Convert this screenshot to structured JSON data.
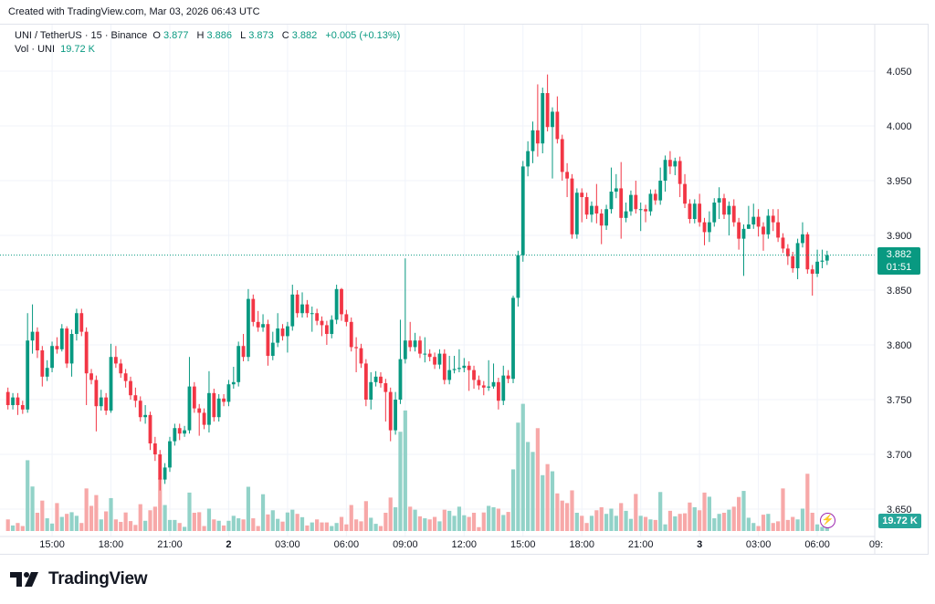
{
  "created_note": "Created with TradingView.com, Mar 03, 2026 06:43 UTC",
  "legend": {
    "symbol": "UNI / TetherUS · 15 · Binance",
    "o_label": "O",
    "o": "3.877",
    "h_label": "H",
    "h": "3.886",
    "l_label": "L",
    "l": "3.873",
    "c_label": "C",
    "c": "3.882",
    "change": "+0.005 (+0.13%)",
    "vol_label": "Vol · UNI",
    "vol_value": "19.72 K"
  },
  "price_tag": {
    "price": "3.882",
    "countdown": "01:51"
  },
  "volume_tag": "19.72 K",
  "logo_text": "TradingView",
  "icons": {
    "alert": "lightning-bolt-icon",
    "logo": "tradingview-logo-icon"
  },
  "colors": {
    "up": "#089981",
    "down": "#f23645",
    "vol_up": "#92d2c8",
    "vol_down": "#f7a8a8",
    "grid": "#f0f3fa"
  },
  "chart_data": {
    "type": "candlestick",
    "title": "UNI / TetherUS · 15 · Binance",
    "interval": "15",
    "ylim": [
      3.625,
      4.0617
    ],
    "y_ticks": [
      "3.650",
      "3.700",
      "3.750",
      "3.800",
      "3.850",
      "3.900",
      "3.950",
      "4.000",
      "4.050"
    ],
    "x_ticks": [
      "15:00",
      "18:00",
      "21:00",
      "2",
      "03:00",
      "06:00",
      "09:00",
      "12:00",
      "15:00",
      "18:00",
      "21:00",
      "3",
      "03:00",
      "06:00",
      "09:"
    ],
    "grid": true,
    "last_price": 3.882,
    "open": [
      3.757,
      3.745,
      3.752,
      3.745,
      3.741,
      3.804,
      3.812,
      3.795,
      3.771,
      3.779,
      3.799,
      3.796,
      3.815,
      3.783,
      3.81,
      3.829,
      3.812,
      3.774,
      3.768,
      3.744,
      3.752,
      3.74,
      3.789,
      3.783,
      3.774,
      3.767,
      3.754,
      3.749,
      3.734,
      3.736,
      3.71,
      3.7,
      3.677,
      3.688,
      3.712,
      3.724,
      3.719,
      3.722,
      3.762,
      3.742,
      3.738,
      3.727,
      3.756,
      3.734,
      3.751,
      3.748,
      3.764,
      3.766,
      3.799,
      3.789,
      3.842,
      3.821,
      3.816,
      3.819,
      3.79,
      3.802,
      3.815,
      3.808,
      3.817,
      3.846,
      3.829,
      3.837,
      3.829,
      3.829,
      3.822,
      3.818,
      3.81,
      3.823,
      3.851,
      3.828,
      3.821,
      3.798,
      3.797,
      3.783,
      3.75,
      3.766,
      3.771,
      3.765,
      3.757,
      3.722,
      3.75,
      3.787,
      3.804,
      3.798,
      3.804,
      3.792,
      3.792,
      3.789,
      3.782,
      3.792,
      3.768,
      3.777,
      3.778,
      3.779,
      3.781,
      3.777,
      3.768,
      3.763,
      3.761,
      3.762,
      3.766,
      3.749,
      3.772,
      3.769,
      3.843,
      3.882,
      3.963,
      3.977,
      3.996,
      3.984,
      4.03,
      3.999,
      4.013,
      3.988,
      3.958,
      3.952,
      3.901,
      3.939,
      3.935,
      3.919,
      3.927,
      3.92,
      3.909,
      3.924,
      3.94,
      3.943,
      3.916,
      3.922,
      3.937,
      3.924,
      3.924,
      3.922,
      3.938,
      3.932,
      3.95,
      3.969,
      3.963,
      3.968,
      3.947,
      3.929,
      3.915,
      3.929,
      3.912,
      3.903,
      3.912,
      3.93,
      3.934,
      3.919,
      3.927,
      3.912,
      3.897,
      3.906,
      3.91,
      3.917,
      3.908,
      3.901,
      3.918,
      3.912,
      3.898,
      3.888,
      3.881,
      3.87,
      3.893,
      3.901,
      3.869,
      3.865,
      3.876,
      3.877
    ],
    "high": [
      3.761,
      3.756,
      3.756,
      3.749,
      3.829,
      3.837,
      3.816,
      3.799,
      3.786,
      3.803,
      3.807,
      3.819,
      3.817,
      3.814,
      3.833,
      3.833,
      3.816,
      3.778,
      3.772,
      3.759,
      3.756,
      3.801,
      3.799,
      3.787,
      3.778,
      3.771,
      3.761,
      3.753,
      3.745,
      3.739,
      3.716,
      3.704,
      3.692,
      3.716,
      3.728,
      3.728,
      3.726,
      3.789,
      3.766,
      3.746,
      3.742,
      3.776,
      3.76,
      3.755,
      3.755,
      3.768,
      3.78,
      3.803,
      3.81,
      3.851,
      3.846,
      3.831,
      3.828,
      3.823,
      3.812,
      3.829,
      3.819,
      3.821,
      3.855,
      3.85,
      3.848,
      3.841,
      3.835,
      3.833,
      3.826,
      3.822,
      3.827,
      3.855,
      3.852,
      3.832,
      3.825,
      3.807,
      3.801,
      3.787,
      3.775,
      3.776,
      3.775,
      3.769,
      3.761,
      3.757,
      3.823,
      3.879,
      3.821,
      3.811,
      3.808,
      3.807,
      3.796,
      3.793,
      3.796,
      3.796,
      3.79,
      3.79,
      3.796,
      3.788,
      3.785,
      3.781,
      3.772,
      3.767,
      3.786,
      3.783,
      3.77,
      3.781,
      3.777,
      3.845,
      3.886,
      3.968,
      3.986,
      4.004,
      4.038,
      4.035,
      4.047,
      4.017,
      4.027,
      3.992,
      3.966,
      3.956,
      3.943,
      3.943,
      3.939,
      3.931,
      3.947,
      3.924,
      3.928,
      3.962,
      3.956,
      3.967,
      3.93,
      3.941,
      3.95,
      3.93,
      3.928,
      3.942,
      3.942,
      3.962,
      3.973,
      3.977,
      3.971,
      3.972,
      3.956,
      3.933,
      3.933,
      3.938,
      3.916,
      3.922,
      3.934,
      3.944,
      3.938,
      3.931,
      3.933,
      3.916,
      3.91,
      3.927,
      3.929,
      3.924,
      3.912,
      3.924,
      3.924,
      3.924,
      3.902,
      3.892,
      3.885,
      3.897,
      3.912,
      3.903,
      3.873,
      3.887,
      3.887,
      3.886
    ],
    "low": [
      3.741,
      3.741,
      3.736,
      3.737,
      3.738,
      3.792,
      3.788,
      3.762,
      3.767,
      3.775,
      3.792,
      3.794,
      3.779,
      3.771,
      3.804,
      3.808,
      3.745,
      3.764,
      3.721,
      3.74,
      3.736,
      3.738,
      3.779,
      3.77,
      3.761,
      3.75,
      3.743,
      3.73,
      3.728,
      3.704,
      3.694,
      3.667,
      3.673,
      3.684,
      3.708,
      3.713,
      3.716,
      3.719,
      3.738,
      3.717,
      3.723,
      3.72,
      3.73,
      3.73,
      3.744,
      3.744,
      3.76,
      3.762,
      3.785,
      3.785,
      3.817,
      3.812,
      3.812,
      3.781,
      3.786,
      3.798,
      3.804,
      3.793,
      3.813,
      3.825,
      3.825,
      3.825,
      3.812,
      3.818,
      3.808,
      3.8,
      3.806,
      3.819,
      3.822,
      3.817,
      3.794,
      3.775,
      3.779,
      3.744,
      3.741,
      3.762,
      3.761,
      3.73,
      3.712,
      3.718,
      3.746,
      3.783,
      3.794,
      3.794,
      3.788,
      3.784,
      3.785,
      3.778,
      3.778,
      3.764,
      3.764,
      3.774,
      3.775,
      3.775,
      3.758,
      3.76,
      3.759,
      3.754,
      3.758,
      3.76,
      3.741,
      3.745,
      3.765,
      3.765,
      3.835,
      3.876,
      3.954,
      3.966,
      3.972,
      3.975,
      3.995,
      3.952,
      3.984,
      3.95,
      3.935,
      3.897,
      3.897,
      3.912,
      3.915,
      3.912,
      3.911,
      3.892,
      3.905,
      3.92,
      3.934,
      3.897,
      3.912,
      3.918,
      3.92,
      3.904,
      3.912,
      3.918,
      3.928,
      3.928,
      3.94,
      3.956,
      3.955,
      3.935,
      3.925,
      3.911,
      3.911,
      3.908,
      3.891,
      3.894,
      3.908,
      3.915,
      3.915,
      3.9,
      3.908,
      3.887,
      3.863,
      3.906,
      3.906,
      3.899,
      3.886,
      3.897,
      3.904,
      3.894,
      3.884,
      3.873,
      3.866,
      3.86,
      3.889,
      3.865,
      3.845,
      3.862,
      3.87,
      3.873
    ],
    "close": [
      3.745,
      3.752,
      3.745,
      3.741,
      3.804,
      3.812,
      3.795,
      3.771,
      3.779,
      3.799,
      3.796,
      3.815,
      3.783,
      3.81,
      3.829,
      3.812,
      3.774,
      3.768,
      3.744,
      3.752,
      3.74,
      3.789,
      3.783,
      3.774,
      3.767,
      3.754,
      3.749,
      3.734,
      3.736,
      3.71,
      3.7,
      3.677,
      3.688,
      3.712,
      3.724,
      3.719,
      3.722,
      3.762,
      3.742,
      3.738,
      3.727,
      3.756,
      3.734,
      3.751,
      3.748,
      3.764,
      3.766,
      3.799,
      3.789,
      3.842,
      3.821,
      3.816,
      3.819,
      3.79,
      3.802,
      3.815,
      3.808,
      3.817,
      3.846,
      3.829,
      3.837,
      3.829,
      3.829,
      3.822,
      3.818,
      3.81,
      3.823,
      3.851,
      3.828,
      3.821,
      3.798,
      3.797,
      3.783,
      3.75,
      3.766,
      3.771,
      3.765,
      3.757,
      3.722,
      3.75,
      3.787,
      3.804,
      3.798,
      3.804,
      3.792,
      3.792,
      3.789,
      3.782,
      3.792,
      3.768,
      3.777,
      3.778,
      3.779,
      3.781,
      3.777,
      3.768,
      3.763,
      3.761,
      3.762,
      3.766,
      3.749,
      3.772,
      3.769,
      3.843,
      3.882,
      3.963,
      3.977,
      3.996,
      3.984,
      4.03,
      3.999,
      4.013,
      3.988,
      3.958,
      3.952,
      3.901,
      3.939,
      3.935,
      3.919,
      3.927,
      3.92,
      3.909,
      3.924,
      3.94,
      3.943,
      3.916,
      3.922,
      3.937,
      3.924,
      3.924,
      3.922,
      3.938,
      3.932,
      3.95,
      3.969,
      3.963,
      3.968,
      3.947,
      3.929,
      3.915,
      3.929,
      3.912,
      3.903,
      3.912,
      3.93,
      3.934,
      3.919,
      3.927,
      3.912,
      3.897,
      3.906,
      3.91,
      3.917,
      3.908,
      3.901,
      3.918,
      3.912,
      3.898,
      3.888,
      3.881,
      3.87,
      3.893,
      3.901,
      3.869,
      3.865,
      3.876,
      3.877,
      3.882
    ],
    "volume_k": [
      42,
      20,
      29,
      18,
      256,
      161,
      66,
      110,
      46,
      27,
      101,
      51,
      62,
      68,
      55,
      29,
      154,
      91,
      130,
      42,
      71,
      119,
      42,
      33,
      67,
      36,
      22,
      97,
      37,
      75,
      88,
      191,
      94,
      40,
      40,
      29,
      15,
      139,
      66,
      68,
      18,
      81,
      42,
      37,
      20,
      37,
      55,
      46,
      42,
      160,
      46,
      18,
      133,
      60,
      75,
      44,
      34,
      67,
      77,
      62,
      50,
      20,
      31,
      42,
      31,
      31,
      18,
      29,
      51,
      24,
      94,
      42,
      35,
      108,
      48,
      26,
      18,
      66,
      121,
      86,
      359,
      436,
      88,
      77,
      53,
      46,
      42,
      51,
      35,
      77,
      73,
      55,
      88,
      57,
      51,
      66,
      14,
      67,
      91,
      86,
      81,
      58,
      69,
      223,
      392,
      460,
      322,
      286,
      372,
      202,
      242,
      216,
      136,
      110,
      101,
      147,
      66,
      55,
      29,
      55,
      75,
      86,
      62,
      81,
      55,
      101,
      73,
      44,
      134,
      55,
      51,
      42,
      40,
      141,
      24,
      73,
      53,
      62,
      64,
      103,
      86,
      75,
      139,
      124,
      46,
      62,
      66,
      77,
      88,
      123,
      145,
      48,
      29,
      18,
      59,
      62,
      29,
      35,
      154,
      40,
      51,
      42,
      81,
      207,
      66,
      24,
      15,
      19.72
    ]
  }
}
